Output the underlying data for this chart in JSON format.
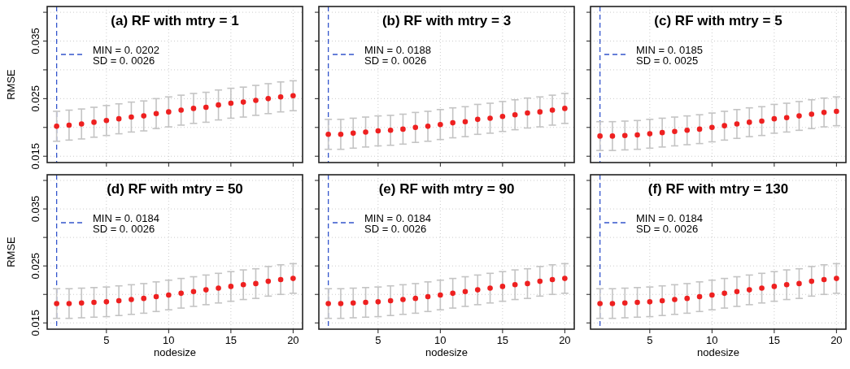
{
  "chart_data": [
    {
      "type": "scatter",
      "title": "(a) RF with mtry = 1",
      "ylabel": "RMSE",
      "annotations": [
        "MIN = 0. 0202",
        "SD = 0. 0026"
      ],
      "x": [
        1,
        2,
        3,
        4,
        5,
        6,
        7,
        8,
        9,
        10,
        11,
        12,
        13,
        14,
        15,
        16,
        17,
        18,
        19,
        20
      ],
      "series": [
        {
          "color": "#ee2020",
          "errors": [
            0.0026,
            0.0026,
            0.0026,
            0.0026,
            0.0026,
            0.0026,
            0.0026,
            0.0026,
            0.0026,
            0.0026,
            0.0026,
            0.0026,
            0.0026,
            0.0026,
            0.0026,
            0.0026,
            0.0026,
            0.0026,
            0.0026,
            0.0026
          ],
          "values": [
            0.0202,
            0.0204,
            0.0206,
            0.0209,
            0.0212,
            0.0215,
            0.0218,
            0.022,
            0.0224,
            0.0227,
            0.023,
            0.0233,
            0.0235,
            0.0239,
            0.0242,
            0.0244,
            0.0247,
            0.025,
            0.0253,
            0.0255
          ]
        }
      ],
      "xlim": [
        0.24,
        20.76
      ],
      "xticks": [
        5,
        10,
        15,
        20
      ],
      "ylim": [
        0.0139,
        0.041
      ],
      "yticks": [
        0.015,
        {
          "value": 0.02,
          "label": null
        },
        0.025,
        {
          "value": 0.03,
          "label": null
        },
        0.035,
        {
          "value": 0.04,
          "label": null
        }
      ],
      "grid": true,
      "marker": "circle",
      "tick_labels": "y",
      "ref_lines": [
        {
          "axis": "x",
          "value": 1,
          "color": "#3355cc",
          "line_style": "dashed"
        }
      ]
    },
    {
      "type": "scatter",
      "title": "(b) RF with mtry = 3",
      "annotations": [
        "MIN = 0. 0188",
        "SD = 0. 0026"
      ],
      "x": [
        1,
        2,
        3,
        4,
        5,
        6,
        7,
        8,
        9,
        10,
        11,
        12,
        13,
        14,
        15,
        16,
        17,
        18,
        19,
        20
      ],
      "series": [
        {
          "color": "#ee2020",
          "errors": [
            0.0026,
            0.0026,
            0.0026,
            0.0026,
            0.0026,
            0.0026,
            0.0026,
            0.0026,
            0.0026,
            0.0026,
            0.0026,
            0.0026,
            0.0026,
            0.0026,
            0.0026,
            0.0026,
            0.0026,
            0.0026,
            0.0026,
            0.0026
          ],
          "values": [
            0.0188,
            0.0188,
            0.019,
            0.0192,
            0.0194,
            0.0195,
            0.0197,
            0.02,
            0.0202,
            0.0205,
            0.0208,
            0.021,
            0.0214,
            0.0216,
            0.0219,
            0.0222,
            0.0225,
            0.0227,
            0.023,
            0.0233
          ]
        }
      ],
      "xlim": [
        0.24,
        20.76
      ],
      "xticks": [
        5,
        10,
        15,
        20
      ],
      "ylim": [
        0.0139,
        0.041
      ],
      "yticks": [
        0.015,
        {
          "value": 0.02,
          "label": null
        },
        0.025,
        {
          "value": 0.03,
          "label": null
        },
        0.035,
        {
          "value": 0.04,
          "label": null
        }
      ],
      "grid": true,
      "marker": "circle",
      "tick_labels": false,
      "ref_lines": [
        {
          "axis": "x",
          "value": 1,
          "color": "#3355cc",
          "line_style": "dashed"
        }
      ]
    },
    {
      "type": "scatter",
      "title": "(c) RF with mtry = 5",
      "annotations": [
        "MIN = 0. 0185",
        "SD = 0. 0025"
      ],
      "x": [
        1,
        2,
        3,
        4,
        5,
        6,
        7,
        8,
        9,
        10,
        11,
        12,
        13,
        14,
        15,
        16,
        17,
        18,
        19,
        20
      ],
      "series": [
        {
          "color": "#ee2020",
          "errors": [
            0.0025,
            0.0025,
            0.0025,
            0.0025,
            0.0025,
            0.0025,
            0.0025,
            0.0025,
            0.0025,
            0.0025,
            0.0025,
            0.0025,
            0.0025,
            0.0025,
            0.0025,
            0.0025,
            0.0025,
            0.0025,
            0.0025,
            0.0025
          ],
          "values": [
            0.0185,
            0.0185,
            0.0186,
            0.0187,
            0.0189,
            0.0191,
            0.0193,
            0.0195,
            0.0197,
            0.02,
            0.0203,
            0.0206,
            0.0209,
            0.0211,
            0.0215,
            0.0217,
            0.022,
            0.0223,
            0.0226,
            0.0228
          ]
        }
      ],
      "xlim": [
        0.24,
        20.76
      ],
      "xticks": [
        5,
        10,
        15,
        20
      ],
      "ylim": [
        0.0139,
        0.041
      ],
      "yticks": [
        0.015,
        {
          "value": 0.02,
          "label": null
        },
        0.025,
        {
          "value": 0.03,
          "label": null
        },
        0.035,
        {
          "value": 0.04,
          "label": null
        }
      ],
      "grid": true,
      "marker": "circle",
      "tick_labels": false,
      "ref_lines": [
        {
          "axis": "x",
          "value": 1,
          "color": "#3355cc",
          "line_style": "dashed"
        }
      ]
    },
    {
      "type": "scatter",
      "title": "(d) RF with mtry = 50",
      "xlabel": "nodesize",
      "ylabel": "RMSE",
      "annotations": [
        "MIN = 0. 0184",
        "SD = 0. 0026"
      ],
      "x": [
        1,
        2,
        3,
        4,
        5,
        6,
        7,
        8,
        9,
        10,
        11,
        12,
        13,
        14,
        15,
        16,
        17,
        18,
        19,
        20
      ],
      "series": [
        {
          "color": "#ee2020",
          "errors": [
            0.0026,
            0.0026,
            0.0026,
            0.0026,
            0.0026,
            0.0026,
            0.0026,
            0.0026,
            0.0026,
            0.0026,
            0.0026,
            0.0026,
            0.0026,
            0.0026,
            0.0026,
            0.0026,
            0.0026,
            0.0026,
            0.0026,
            0.0026
          ],
          "values": [
            0.0184,
            0.0184,
            0.0185,
            0.0186,
            0.0187,
            0.0189,
            0.0191,
            0.0193,
            0.0196,
            0.0199,
            0.0202,
            0.0205,
            0.0208,
            0.0211,
            0.0214,
            0.0217,
            0.0219,
            0.0223,
            0.0226,
            0.0228
          ]
        }
      ],
      "xlim": [
        0.24,
        20.76
      ],
      "xticks": [
        5,
        10,
        15,
        20
      ],
      "ylim": [
        0.0139,
        0.041
      ],
      "yticks": [
        0.015,
        {
          "value": 0.02,
          "label": null
        },
        0.025,
        {
          "value": 0.03,
          "label": null
        },
        0.035,
        {
          "value": 0.04,
          "label": null
        }
      ],
      "grid": true,
      "marker": "circle",
      "ref_lines": [
        {
          "axis": "x",
          "value": 1,
          "color": "#3355cc",
          "line_style": "dashed"
        }
      ]
    },
    {
      "type": "scatter",
      "title": "(e) RF with mtry = 90",
      "xlabel": "nodesize",
      "annotations": [
        "MIN = 0. 0184",
        "SD = 0. 0026"
      ],
      "x": [
        1,
        2,
        3,
        4,
        5,
        6,
        7,
        8,
        9,
        10,
        11,
        12,
        13,
        14,
        15,
        16,
        17,
        18,
        19,
        20
      ],
      "series": [
        {
          "color": "#ee2020",
          "errors": [
            0.0026,
            0.0026,
            0.0026,
            0.0026,
            0.0026,
            0.0026,
            0.0026,
            0.0026,
            0.0026,
            0.0026,
            0.0026,
            0.0026,
            0.0026,
            0.0026,
            0.0026,
            0.0026,
            0.0026,
            0.0026,
            0.0026,
            0.0026
          ],
          "values": [
            0.0184,
            0.0184,
            0.0185,
            0.0186,
            0.0187,
            0.0189,
            0.0191,
            0.0193,
            0.0196,
            0.0199,
            0.0202,
            0.0205,
            0.0208,
            0.0211,
            0.0214,
            0.0217,
            0.0219,
            0.0223,
            0.0226,
            0.0228
          ]
        }
      ],
      "xlim": [
        0.24,
        20.76
      ],
      "xticks": [
        5,
        10,
        15,
        20
      ],
      "ylim": [
        0.0139,
        0.041
      ],
      "yticks": [
        0.015,
        {
          "value": 0.02,
          "label": null
        },
        0.025,
        {
          "value": 0.03,
          "label": null
        },
        0.035,
        {
          "value": 0.04,
          "label": null
        }
      ],
      "grid": true,
      "marker": "circle",
      "tick_labels": "x",
      "ref_lines": [
        {
          "axis": "x",
          "value": 1,
          "color": "#3355cc",
          "line_style": "dashed"
        }
      ]
    },
    {
      "type": "scatter",
      "title": "(f) RF with mtry = 130",
      "xlabel": "nodesize",
      "annotations": [
        "MIN = 0. 0184",
        "SD = 0. 0026"
      ],
      "x": [
        1,
        2,
        3,
        4,
        5,
        6,
        7,
        8,
        9,
        10,
        11,
        12,
        13,
        14,
        15,
        16,
        17,
        18,
        19,
        20
      ],
      "series": [
        {
          "color": "#ee2020",
          "errors": [
            0.0026,
            0.0026,
            0.0026,
            0.0026,
            0.0026,
            0.0026,
            0.0026,
            0.0026,
            0.0026,
            0.0026,
            0.0026,
            0.0026,
            0.0026,
            0.0026,
            0.0026,
            0.0026,
            0.0026,
            0.0026,
            0.0026,
            0.0026
          ],
          "values": [
            0.0184,
            0.0184,
            0.0185,
            0.0186,
            0.0187,
            0.0189,
            0.0191,
            0.0193,
            0.0196,
            0.0199,
            0.0202,
            0.0205,
            0.0208,
            0.0211,
            0.0214,
            0.0217,
            0.0219,
            0.0223,
            0.0226,
            0.0228
          ]
        }
      ],
      "xlim": [
        0.24,
        20.76
      ],
      "xticks": [
        5,
        10,
        15,
        20
      ],
      "ylim": [
        0.0139,
        0.041
      ],
      "yticks": [
        0.015,
        {
          "value": 0.02,
          "label": null
        },
        0.025,
        {
          "value": 0.03,
          "label": null
        },
        0.035,
        {
          "value": 0.04,
          "label": null
        }
      ],
      "grid": true,
      "marker": "circle",
      "tick_labels": "x",
      "ref_lines": [
        {
          "axis": "x",
          "value": 1,
          "color": "#3355cc",
          "line_style": "dashed"
        }
      ]
    }
  ]
}
